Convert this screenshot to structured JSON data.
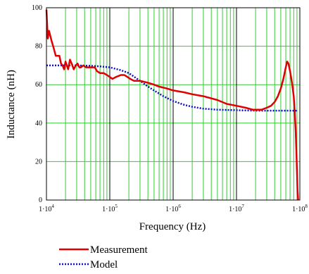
{
  "chart_data": {
    "type": "line",
    "xscale": "log",
    "xlim": [
      10000,
      100000000
    ],
    "ylim": [
      0,
      100
    ],
    "xlabel": "Frequency (Hz)",
    "ylabel": "Inductance (nH)",
    "x_ticks": [
      {
        "value": 10000,
        "mant": "1·10",
        "exp": "4"
      },
      {
        "value": 100000,
        "mant": "1·10",
        "exp": "5"
      },
      {
        "value": 1000000,
        "mant": "1·10",
        "exp": "6"
      },
      {
        "value": 10000000,
        "mant": "1·10",
        "exp": "7"
      },
      {
        "value": 100000000,
        "mant": "1·10",
        "exp": "8"
      }
    ],
    "y_ticks": [
      0,
      20,
      40,
      60,
      80,
      100
    ],
    "grid": true,
    "legend_position": "bottom-left",
    "series": [
      {
        "name": "Measurement",
        "color": "#e00000",
        "style": "solid",
        "points": [
          [
            10000,
            99
          ],
          [
            10500,
            84
          ],
          [
            11000,
            88
          ],
          [
            12000,
            83
          ],
          [
            13000,
            79
          ],
          [
            14000,
            75
          ],
          [
            16000,
            75
          ],
          [
            17000,
            71
          ],
          [
            18000,
            70
          ],
          [
            19000,
            68
          ],
          [
            20000,
            72
          ],
          [
            21000,
            70
          ],
          [
            22000,
            68
          ],
          [
            23500,
            73
          ],
          [
            25000,
            71
          ],
          [
            27000,
            68
          ],
          [
            29000,
            70
          ],
          [
            31000,
            71
          ],
          [
            33000,
            69
          ],
          [
            35000,
            69
          ],
          [
            38000,
            70
          ],
          [
            42000,
            69
          ],
          [
            47000,
            69
          ],
          [
            52000,
            69
          ],
          [
            58000,
            69
          ],
          [
            63000,
            67
          ],
          [
            70000,
            66
          ],
          [
            80000,
            66
          ],
          [
            90000,
            65
          ],
          [
            100000,
            64
          ],
          [
            110000,
            63
          ],
          [
            125000,
            64
          ],
          [
            150000,
            65
          ],
          [
            170000,
            65
          ],
          [
            190000,
            64
          ],
          [
            210000,
            63
          ],
          [
            240000,
            62
          ],
          [
            300000,
            62
          ],
          [
            400000,
            61
          ],
          [
            500000,
            60
          ],
          [
            600000,
            59
          ],
          [
            800000,
            58
          ],
          [
            1000000,
            57
          ],
          [
            1500000,
            56
          ],
          [
            2000000,
            55
          ],
          [
            3000000,
            54
          ],
          [
            5000000,
            52
          ],
          [
            7000000,
            50
          ],
          [
            10000000,
            49
          ],
          [
            14000000,
            48
          ],
          [
            18000000,
            47
          ],
          [
            22000000,
            47
          ],
          [
            25000000,
            47
          ],
          [
            30000000,
            48
          ],
          [
            35000000,
            49
          ],
          [
            40000000,
            51
          ],
          [
            45000000,
            54
          ],
          [
            50000000,
            58
          ],
          [
            55000000,
            63
          ],
          [
            60000000,
            69
          ],
          [
            63000000,
            72
          ],
          [
            66000000,
            71
          ],
          [
            70000000,
            67
          ],
          [
            75000000,
            61
          ],
          [
            80000000,
            54
          ],
          [
            83000000,
            46
          ],
          [
            86000000,
            36
          ],
          [
            88000000,
            26
          ],
          [
            90000000,
            15
          ],
          [
            92000000,
            5
          ],
          [
            94000000,
            0
          ]
        ]
      },
      {
        "name": "Model",
        "color": "#1010c0",
        "style": "dotted",
        "points": [
          [
            10000,
            70
          ],
          [
            20000,
            70
          ],
          [
            30000,
            70
          ],
          [
            50000,
            69.8
          ],
          [
            70000,
            69.5
          ],
          [
            100000,
            69
          ],
          [
            150000,
            67.5
          ],
          [
            200000,
            66
          ],
          [
            300000,
            62
          ],
          [
            400000,
            59
          ],
          [
            500000,
            57
          ],
          [
            700000,
            54
          ],
          [
            1000000,
            51.5
          ],
          [
            1500000,
            49.5
          ],
          [
            2000000,
            48.5
          ],
          [
            3000000,
            47.5
          ],
          [
            5000000,
            47
          ],
          [
            10000000,
            46.7
          ],
          [
            20000000,
            46.5
          ],
          [
            50000000,
            46.5
          ],
          [
            90000000,
            46.5
          ]
        ]
      }
    ]
  },
  "legend": {
    "items": [
      {
        "label": "Measurement"
      },
      {
        "label": "Model"
      }
    ]
  }
}
